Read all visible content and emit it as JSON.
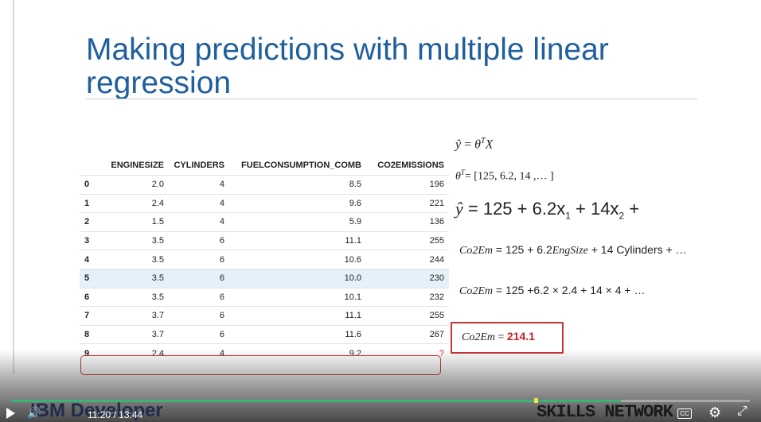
{
  "slide": {
    "title": "Making predictions with multiple linear regression"
  },
  "table": {
    "headers": [
      "",
      "ENGINESIZE",
      "CYLINDERS",
      "FUELCONSUMPTION_COMB",
      "CO2EMISSIONS"
    ],
    "rows": [
      [
        "0",
        "2.0",
        "4",
        "8.5",
        "196"
      ],
      [
        "1",
        "2.4",
        "4",
        "9.6",
        "221"
      ],
      [
        "2",
        "1.5",
        "4",
        "5.9",
        "136"
      ],
      [
        "3",
        "3.5",
        "6",
        "11.1",
        "255"
      ],
      [
        "4",
        "3.5",
        "6",
        "10.6",
        "244"
      ],
      [
        "5",
        "3.5",
        "6",
        "10.0",
        "230"
      ],
      [
        "6",
        "3.5",
        "6",
        "10.1",
        "232"
      ],
      [
        "7",
        "3.7",
        "6",
        "11.1",
        "255"
      ],
      [
        "8",
        "3.7",
        "6",
        "11.6",
        "267"
      ],
      [
        "9",
        "2.4",
        "4",
        "9.2",
        "?"
      ]
    ],
    "highlight_color": "#e4f1f8",
    "unknown_color": "#d12a2a"
  },
  "equations": {
    "eq1": {
      "lhs": "ŷ",
      "eq": " = ",
      "theta": "θ",
      "sup": "T",
      "x": "X"
    },
    "eq2": {
      "theta": "θ",
      "sup": "T",
      "rest": "= [125, 6.2, 14 ,… ]"
    },
    "eq3": {
      "lhs": "ŷ",
      "a": " = 125 + 6.2x",
      "sub1": "1",
      "b": " + 14x",
      "sub2": "2",
      "c": " +"
    },
    "eq4": {
      "lhs": "Co2Em",
      "a": " = 125 + 6.2",
      "var": "EngSize",
      "b": " + 14 Cylinders + …"
    },
    "eq5": {
      "lhs": "Co2Em",
      "a": " = 125 +6.2 × 2.4 + 14 × 4 + …"
    },
    "eq6": {
      "lhs": "Co2Em",
      "eq": " = ",
      "result": "214.1"
    }
  },
  "player": {
    "brand_left": "IBM Developer",
    "brand_right": "SKILLS NETWORK",
    "time": "11:20 / 13:44",
    "progress": 0.825,
    "accent_color": "#3cb371",
    "cc_label": "CC"
  },
  "icons": [
    "play-icon",
    "volume-icon",
    "cc-icon",
    "gear-icon",
    "fullscreen-icon"
  ]
}
